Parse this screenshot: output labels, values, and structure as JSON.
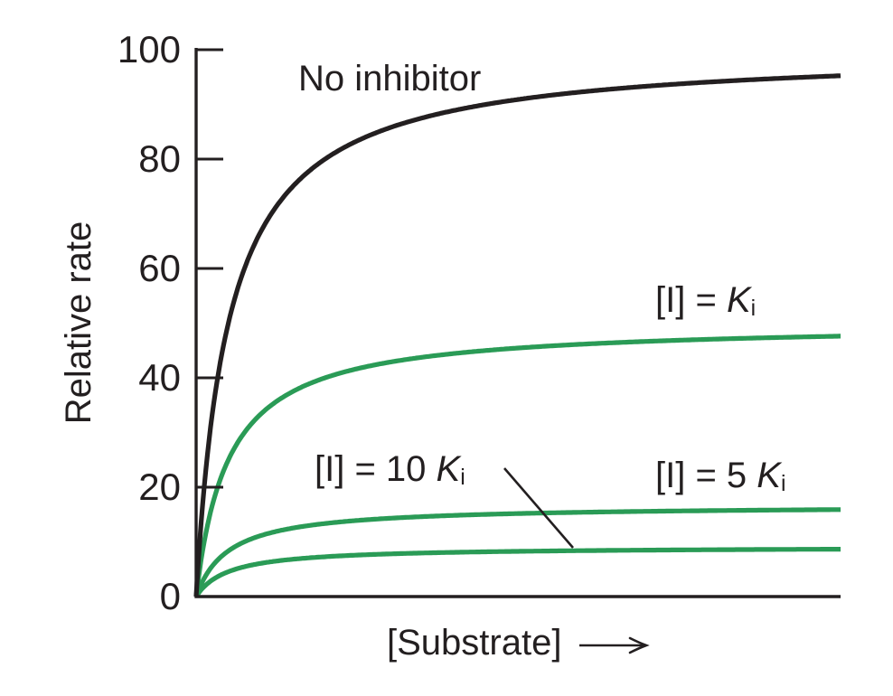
{
  "chart_data": {
    "type": "line",
    "title": "",
    "xlabel": "[Substrate]",
    "ylabel": "Relative rate",
    "x_axis_has_arrow": true,
    "ylim": [
      0,
      100
    ],
    "yticks": [
      0,
      20,
      40,
      60,
      80,
      100
    ],
    "ytick_labels_top_to_bottom": [
      "100",
      "80",
      "60",
      "40",
      "20",
      "0"
    ],
    "x_range_normalized": [
      0,
      1
    ],
    "model": "michaelis-menten",
    "km_fraction_of_x_range": 0.05,
    "grid": false,
    "legend": "inline-curve-labels",
    "series": [
      {
        "name": "No inhibitor",
        "vmax": 100,
        "value_at_right_edge": 95,
        "color": "#231f20"
      },
      {
        "name": "[I] = Ki",
        "vmax": 50,
        "value_at_right_edge": 48,
        "color": "#2a9b56"
      },
      {
        "name": "[I] = 5 Ki",
        "vmax": 16.7,
        "value_at_right_edge": 16,
        "color": "#2a9b56"
      },
      {
        "name": "[I] = 10 Ki",
        "vmax": 9.1,
        "value_at_right_edge": 9,
        "color": "#2a9b56"
      }
    ]
  },
  "labels": {
    "no_inhibitor": "No inhibitor",
    "ki": {
      "prefix": "[I] = ",
      "k": "K",
      "sub": "i"
    },
    "ki5": {
      "prefix": "[I] = 5 ",
      "k": "K",
      "sub": "i"
    },
    "ki10": {
      "prefix": "[I] = 10 ",
      "k": "K",
      "sub": "i"
    },
    "x_axis": "[Substrate]",
    "y_axis": "Relative rate"
  },
  "colors": {
    "ink": "#231f20",
    "green": "#2a9b56",
    "background": "#ffffff"
  }
}
